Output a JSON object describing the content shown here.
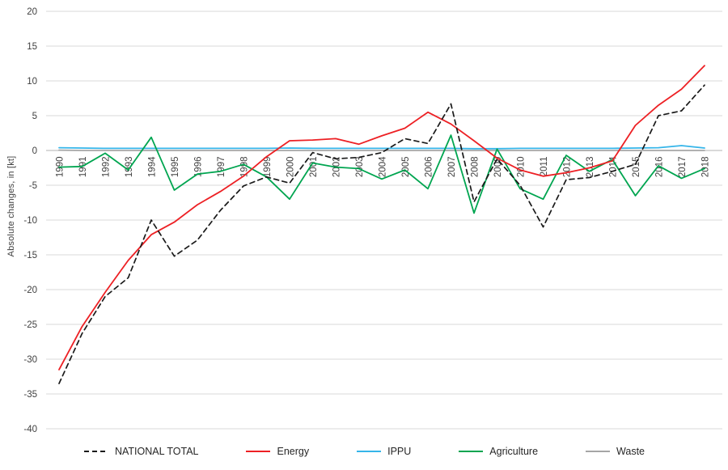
{
  "chart_data": {
    "type": "line",
    "title": "",
    "ylabel": "Absolute changes, in [kt]",
    "xlabel": "",
    "x": [
      1990,
      1991,
      1992,
      1993,
      1994,
      1995,
      1996,
      1997,
      1998,
      1999,
      2000,
      2001,
      2002,
      2003,
      2004,
      2005,
      2006,
      2007,
      2008,
      2009,
      2010,
      2011,
      2012,
      2013,
      2014,
      2015,
      2016,
      2017,
      2018
    ],
    "ylim": [
      -40,
      20
    ],
    "ytick_step": 5,
    "yticks": [
      20,
      15,
      10,
      5,
      0,
      -5,
      -10,
      -15,
      -20,
      -25,
      -30,
      -35,
      -40
    ],
    "grid": true,
    "legend_position": "bottom",
    "colors": {
      "gridline": "#d9d9d9",
      "zero_axis": "#b3b3b3",
      "tick_text": "#404040",
      "legend_text": "#262626",
      "background": "#ffffff"
    },
    "series": [
      {
        "name": "NATIONAL TOTAL",
        "color": "#1a1a1a",
        "style": "dashed",
        "values": [
          -33.5,
          -26.3,
          -21.0,
          -18.3,
          -10.0,
          -15.2,
          -12.9,
          -8.6,
          -5.1,
          -3.8,
          -4.7,
          -0.3,
          -1.2,
          -1.0,
          -0.3,
          1.7,
          1.0,
          6.7,
          -7.4,
          -1.2,
          -5.0,
          -11.0,
          -4.2,
          -3.9,
          -3.0,
          -2.0,
          5.0,
          5.7,
          9.4
        ]
      },
      {
        "name": "Energy",
        "color": "#ed2024",
        "style": "solid",
        "values": [
          -31.5,
          -25.3,
          -20.4,
          -15.8,
          -12.1,
          -10.3,
          -7.8,
          -5.9,
          -3.7,
          -0.9,
          1.4,
          1.5,
          1.7,
          0.9,
          2.1,
          3.2,
          5.5,
          3.8,
          1.4,
          -1.1,
          -2.8,
          -3.7,
          -3.2,
          -2.5,
          -1.5,
          3.6,
          6.5,
          8.8,
          12.2
        ]
      },
      {
        "name": "IPPU",
        "color": "#35b5e9",
        "style": "solid",
        "values": [
          0.4,
          0.35,
          0.3,
          0.3,
          0.3,
          0.3,
          0.3,
          0.3,
          0.3,
          0.3,
          0.35,
          0.3,
          0.3,
          0.3,
          0.3,
          0.3,
          0.3,
          0.3,
          0.25,
          0.25,
          0.3,
          0.3,
          0.3,
          0.3,
          0.3,
          0.35,
          0.4,
          0.7,
          0.35
        ]
      },
      {
        "name": "Agriculture",
        "color": "#00a550",
        "style": "solid",
        "values": [
          -2.4,
          -2.3,
          -0.4,
          -2.8,
          1.9,
          -5.7,
          -3.4,
          -3.0,
          -2.0,
          -3.8,
          -7.0,
          -1.8,
          -2.4,
          -2.6,
          -4.1,
          -2.8,
          -5.5,
          2.2,
          -9.0,
          0.2,
          -5.5,
          -7.0,
          -0.7,
          -3.0,
          -1.3,
          -6.5,
          -2.2,
          -4.0,
          -2.6
        ]
      },
      {
        "name": "Waste",
        "color": "#a6a6a6",
        "style": "solid",
        "values": [
          0.05,
          0,
          0,
          0,
          0,
          0,
          0,
          0,
          0,
          0,
          0,
          0,
          0,
          0,
          0,
          0,
          0,
          0,
          0,
          0,
          0,
          0,
          0,
          0,
          0,
          0,
          0,
          0,
          0
        ]
      }
    ]
  }
}
